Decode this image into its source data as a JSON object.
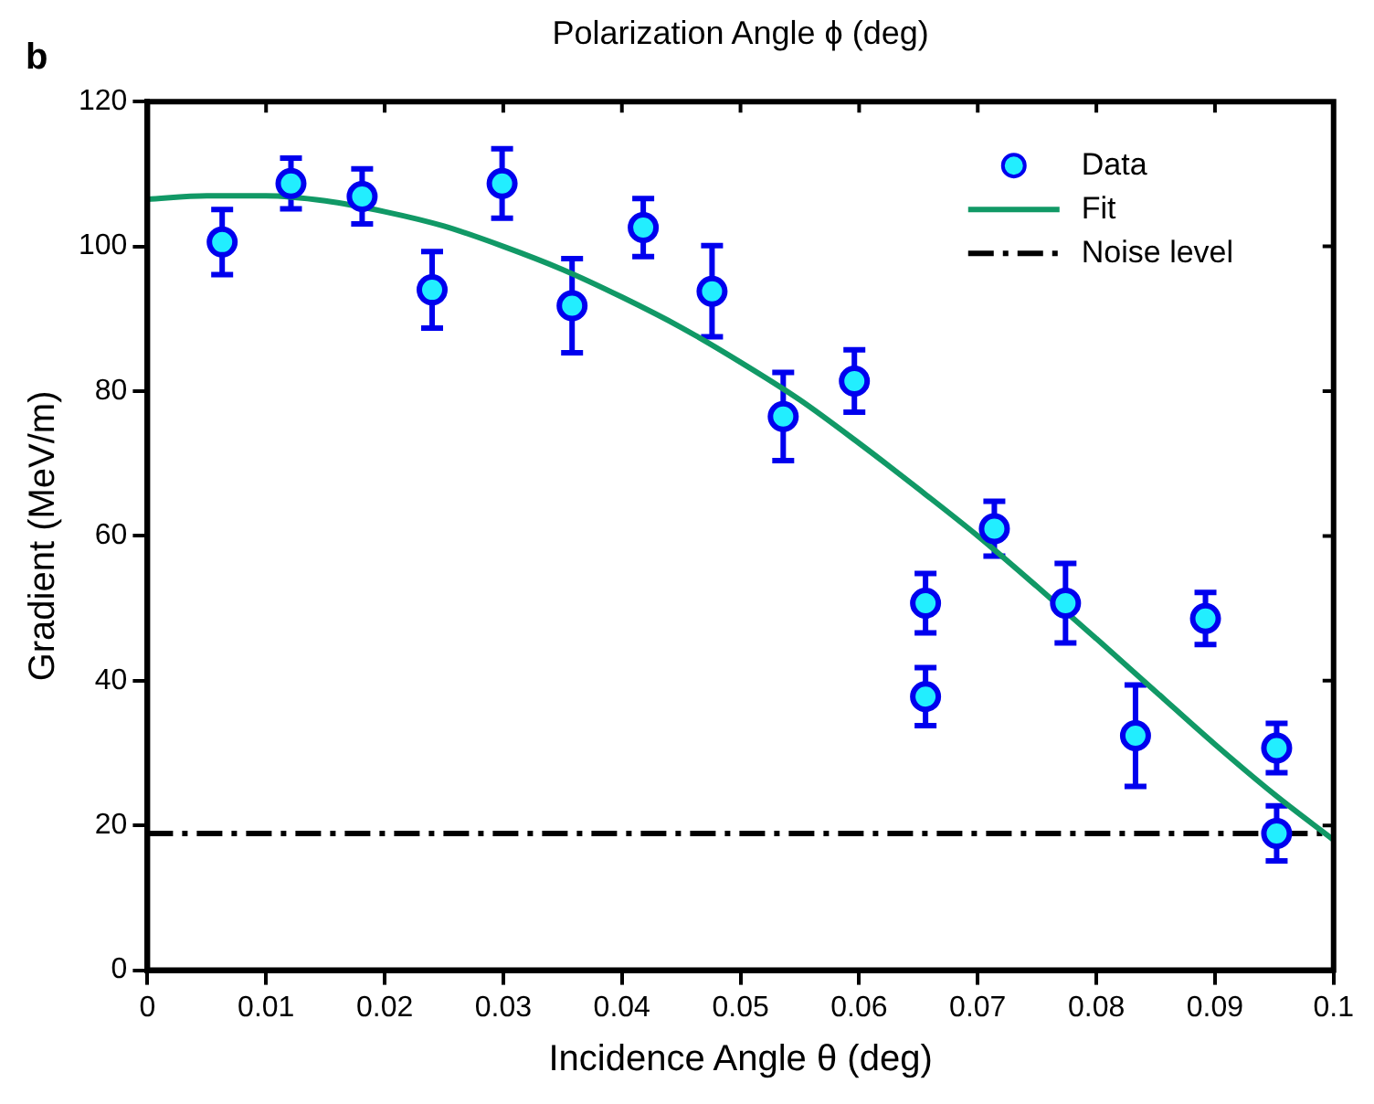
{
  "chart_data": {
    "type": "scatter",
    "x2label": "Polarization Angle ϕ (deg)",
    "xlabel": "Incidence Angle θ (deg)",
    "ylabel": "Gradient (MeV/m)",
    "annotations": [
      "b"
    ],
    "xlim": [
      0,
      0.1
    ],
    "xticks": [
      0,
      0.01,
      0.02,
      0.03,
      0.04,
      0.05,
      0.06,
      0.07,
      0.08,
      0.09,
      0.1
    ],
    "ylim": [
      0,
      120
    ],
    "yticks": [
      0,
      20,
      40,
      60,
      80,
      100,
      120
    ],
    "grid": false,
    "legend": "top right",
    "series": [
      {
        "name": "Data",
        "color": "#22eeff",
        "marker": "circle",
        "x": [
          0.0063,
          0.0121,
          0.0181,
          0.024,
          0.0299,
          0.0358,
          0.0418,
          0.0476,
          0.0536,
          0.0596,
          0.0656,
          0.0656,
          0.0714,
          0.0774,
          0.0833,
          0.0892,
          0.0952,
          0.0952
        ],
        "values": [
          100.6,
          108.7,
          106.9,
          94,
          108.7,
          91.8,
          102.6,
          93.8,
          76.5,
          81.4,
          50.7,
          37.8,
          61,
          50.7,
          32.4,
          48.6,
          30.7,
          18.9
        ],
        "errors": [
          4.5,
          3.5,
          3.8,
          5.3,
          4.8,
          6.5,
          4,
          6.3,
          6.1,
          4.3,
          4.1,
          4,
          3.8,
          5.5,
          7,
          3.6,
          3.4,
          3.8
        ]
      },
      {
        "name": "Fit",
        "type": "line",
        "color": "#119966",
        "marker": "none",
        "line_style": "solid",
        "x": [
          0,
          0.005,
          0.01,
          0.015,
          0.02,
          0.025,
          0.03,
          0.035,
          0.04,
          0.045,
          0.05,
          0.055,
          0.06,
          0.065,
          0.07,
          0.075,
          0.08,
          0.085,
          0.09,
          0.095,
          0.1
        ],
        "values": [
          106.5,
          107,
          107,
          106.3,
          104.8,
          102.8,
          100,
          96.8,
          93,
          88.8,
          84,
          78.8,
          72.8,
          66.5,
          60,
          53,
          45.8,
          38.5,
          31.2,
          24.3,
          18
        ]
      }
    ],
    "ref_lines": [
      {
        "axis": "y",
        "value": 18.9,
        "label": "Noise level",
        "color": "#000000",
        "line_style": "dashed"
      }
    ]
  }
}
